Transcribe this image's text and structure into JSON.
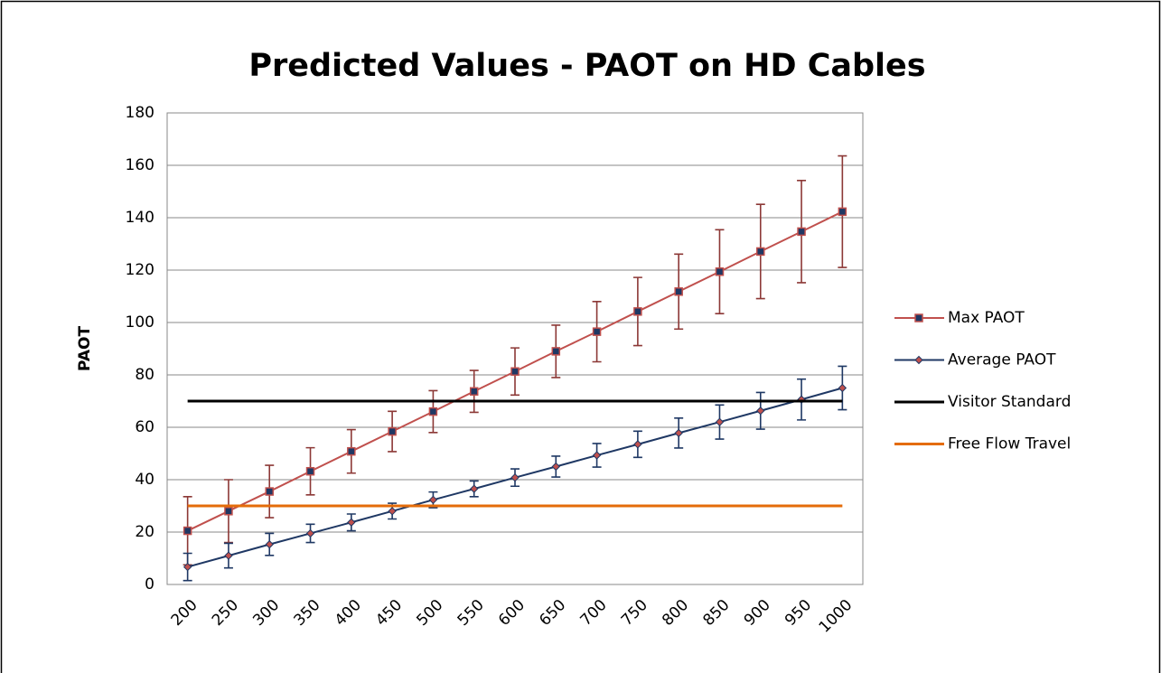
{
  "chart_data": {
    "type": "line",
    "title": "Predicted Values - PAOT on HD Cables",
    "y_label": "PAOT",
    "categories": [
      "200",
      "250",
      "300",
      "350",
      "400",
      "450",
      "500",
      "550",
      "600",
      "650",
      "700",
      "750",
      "800",
      "850",
      "900",
      "950",
      "1000"
    ],
    "series": [
      {
        "name": "Max PAOT",
        "color": "#c0504d",
        "marker": "square",
        "marker_color": "#1f3864",
        "error_color": "#8c3836",
        "values": [
          20.5,
          28,
          35.5,
          43.2,
          50.8,
          58.4,
          66,
          73.7,
          81.3,
          89,
          96.5,
          104.2,
          111.8,
          119.4,
          127.1,
          134.7,
          142.3
        ],
        "errors": [
          13,
          12,
          10,
          9,
          8.3,
          7.7,
          8,
          8,
          9,
          10,
          11.5,
          13,
          14.3,
          16,
          18,
          19.5,
          21.3
        ]
      },
      {
        "name": "Average PAOT",
        "color": "#1f3864",
        "marker": "diamond",
        "marker_color": "#c0504d",
        "error_color": "#1f3864",
        "values": [
          6.7,
          11,
          15.3,
          19.5,
          23.7,
          28,
          32.3,
          36.5,
          40.8,
          45,
          49.3,
          53.5,
          57.8,
          62,
          66.3,
          70.6,
          75
        ],
        "errors": [
          5.2,
          4.7,
          4.2,
          3.5,
          3.2,
          3,
          3,
          3,
          3.3,
          4,
          4.5,
          5,
          5.7,
          6.5,
          7,
          7.8,
          8.3
        ]
      },
      {
        "name": "Visitor Standard",
        "color": "#000000",
        "values": [
          70,
          70,
          70,
          70,
          70,
          70,
          70,
          70,
          70,
          70,
          70,
          70,
          70,
          70,
          70,
          70,
          70
        ]
      },
      {
        "name": "Free Flow Travel",
        "color": "#e46c0a",
        "values": [
          30,
          30,
          30,
          30,
          30,
          30,
          30,
          30,
          30,
          30,
          30,
          30,
          30,
          30,
          30,
          30,
          30
        ]
      }
    ],
    "ylim": [
      0,
      180
    ],
    "yticks": [
      0,
      20,
      40,
      60,
      80,
      100,
      120,
      140,
      160,
      180
    ],
    "grid": true,
    "legend": "right"
  }
}
